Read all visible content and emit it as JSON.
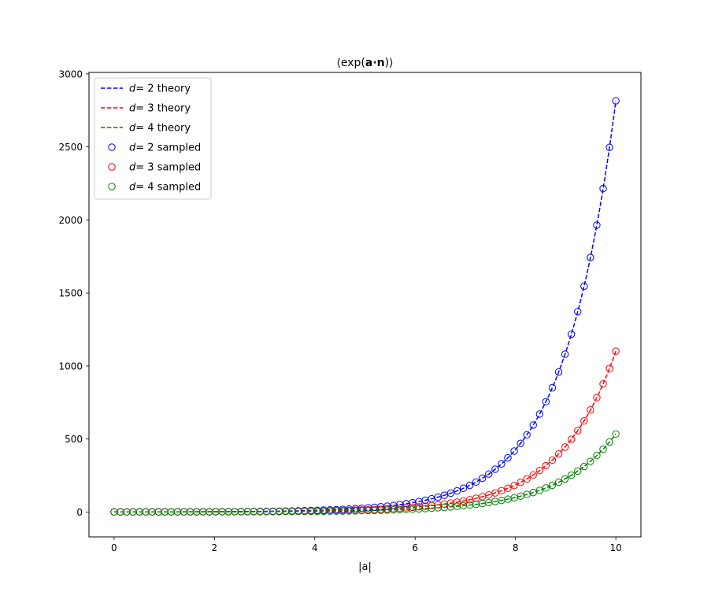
{
  "chart_data": {
    "type": "line",
    "title": "⟨exp(a·n)⟩",
    "title_parts": {
      "open": "⟨exp(",
      "bold": "a·n",
      "close": ")⟩"
    },
    "xlabel": "|a|",
    "ylabel": "",
    "xlim": [
      -0.5,
      10.5
    ],
    "ylim": [
      -170,
      3010
    ],
    "xticks": [
      "0",
      "2",
      "4",
      "6",
      "8",
      "10"
    ],
    "yticks": [
      "0",
      "500",
      "1000",
      "1500",
      "2000",
      "2500",
      "3000"
    ],
    "grid": false,
    "legend_position": "top-left",
    "x_start": 0,
    "x_end": 10,
    "n_samples": 80,
    "series": [
      {
        "name": "d = 2 theory",
        "d": 2,
        "kind": "theory",
        "color": "#0000ff"
      },
      {
        "name": "d = 3 theory",
        "d": 3,
        "kind": "theory",
        "color": "#ff0000"
      },
      {
        "name": "d = 4 theory",
        "d": 4,
        "kind": "theory",
        "color": "#008000"
      },
      {
        "name": "d = 2 sampled",
        "d": 2,
        "kind": "sampled",
        "color": "#0000ff"
      },
      {
        "name": "d = 3 sampled",
        "d": 3,
        "kind": "sampled",
        "color": "#ff0000"
      },
      {
        "name": "d = 4 sampled",
        "d": 4,
        "kind": "sampled",
        "color": "#008000"
      }
    ],
    "endpoint_values": {
      "d2": 2816,
      "d3": 1101,
      "d4": 535
    }
  }
}
